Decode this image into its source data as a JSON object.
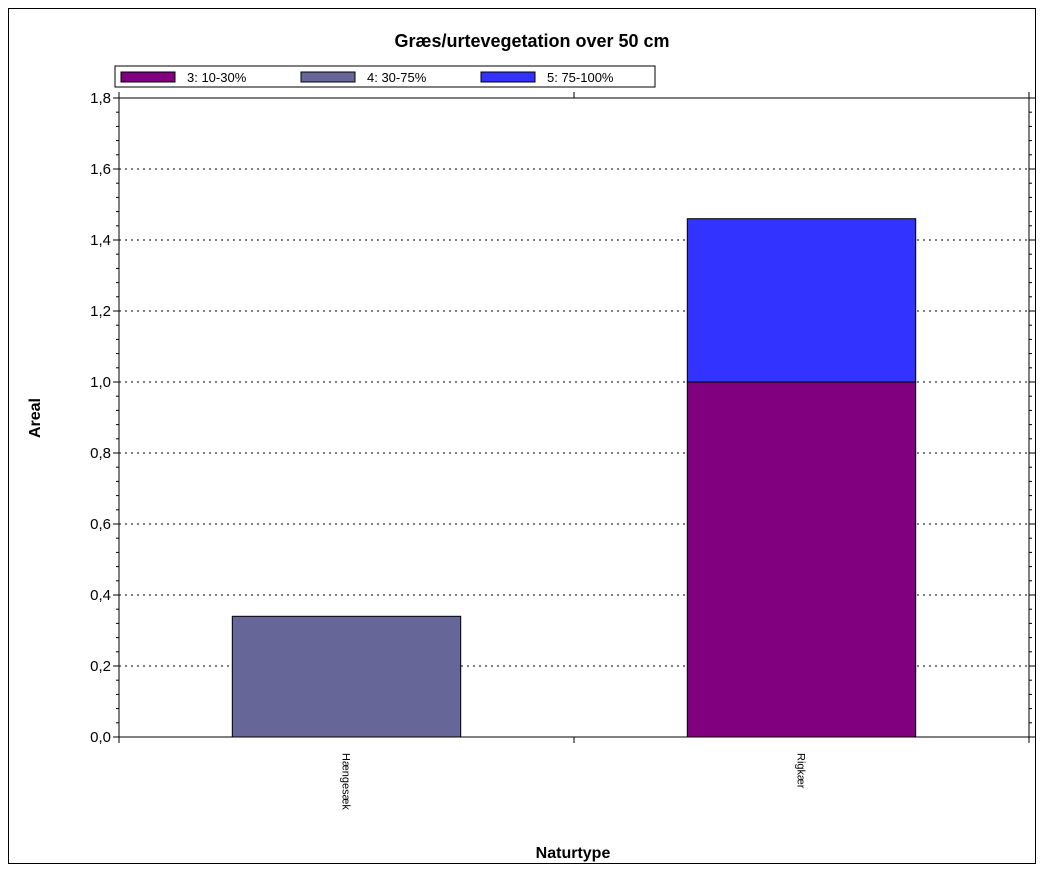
{
  "chart_data": {
    "type": "bar",
    "stacked": true,
    "title": "Græs/urtevegetation over 50 cm",
    "xlabel": "Naturtype",
    "ylabel": "Areal",
    "categories": [
      "Hængesæk",
      "Rigkær"
    ],
    "ylim": [
      0,
      1.8
    ],
    "yticks": [
      "0,0",
      "0,2",
      "0,4",
      "0,6",
      "0,8",
      "1,0",
      "1,2",
      "1,4",
      "1,6",
      "1,8"
    ],
    "grid": "dotted horizontal",
    "legend_position": "top-left",
    "series": [
      {
        "name": "3: 10-30%",
        "color": "#800080",
        "values": [
          0,
          1.0
        ]
      },
      {
        "name": "4: 30-75%",
        "color": "#666699",
        "values": [
          0.34,
          0
        ]
      },
      {
        "name": "5: 75-100%",
        "color": "#3333ff",
        "values": [
          0,
          0.46
        ]
      }
    ]
  }
}
